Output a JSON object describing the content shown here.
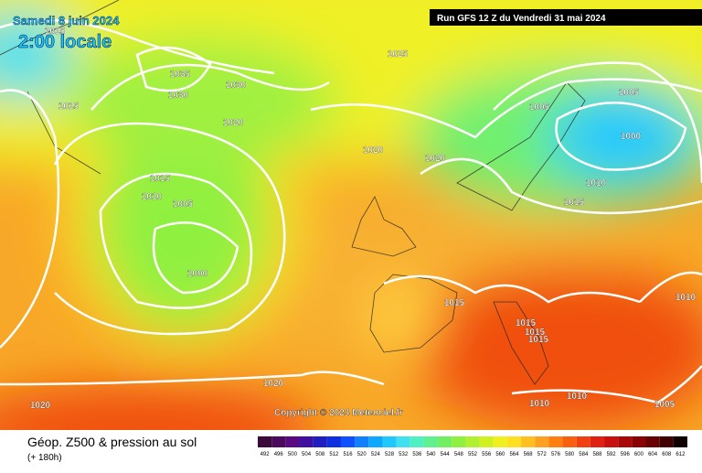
{
  "header": {
    "date": "Samedi 8 juin 2024",
    "time": "2:00 locale",
    "run": "Run GFS 12 Z du Vendredi 31 mai 2024"
  },
  "isobar_labels": [
    "1015",
    "1035",
    "1030",
    "1030",
    "1025",
    "1015",
    "1020",
    "1005",
    "1005",
    "1000",
    "1020",
    "1020",
    "1015",
    "1010",
    "1005",
    "1010",
    "1015",
    "1000",
    "1015",
    "1010",
    "1015",
    "1015",
    "1015",
    "1020",
    "1020",
    "1010",
    "1010",
    "1005"
  ],
  "copyright": "Copyright © 2024 Meteociel.fr",
  "footer": {
    "title": "Géop. Z500 & pression au sol",
    "subtitle": "(+ 180h)"
  },
  "scale": {
    "labels": [
      "492",
      "496",
      "500",
      "504",
      "508",
      "512",
      "516",
      "520",
      "524",
      "528",
      "532",
      "536",
      "540",
      "544",
      "548",
      "552",
      "556",
      "560",
      "564",
      "568",
      "572",
      "576",
      "580",
      "584",
      "588",
      "592",
      "596",
      "600",
      "604",
      "608",
      "612"
    ],
    "colors": [
      "#3a0a3a",
      "#4c0a5c",
      "#5a0a80",
      "#4010a0",
      "#2020c0",
      "#1030e0",
      "#1050ff",
      "#1080ff",
      "#10a8ff",
      "#20c8ff",
      "#40e0f0",
      "#50f0c0",
      "#60f090",
      "#70f060",
      "#90f040",
      "#b0f030",
      "#d0f020",
      "#f0f020",
      "#ffe020",
      "#ffc020",
      "#ffa020",
      "#ff8010",
      "#f86010",
      "#f04010",
      "#e02010",
      "#c81010",
      "#a80808",
      "#880404",
      "#680202",
      "#400000",
      "#100000"
    ]
  }
}
